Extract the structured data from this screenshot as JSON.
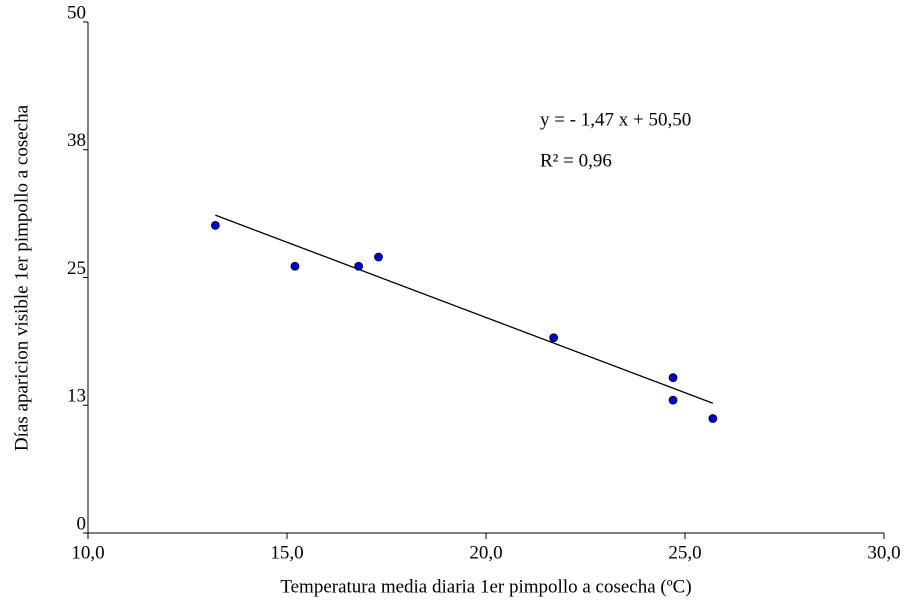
{
  "chart_data": {
    "type": "scatter",
    "x_label": "Temperatura media diaria 1er pimpollo a cosecha (ºC)",
    "y_label": "Días aparicion visible 1er pimpollo a cosecha",
    "annotations": [
      "y = - 1,47 x + 50,50",
      "R² = 0,96"
    ],
    "x": [
      13.2,
      15.2,
      16.8,
      17.3,
      21.7,
      24.7,
      24.7,
      25.7
    ],
    "values": [
      30.1,
      26.1,
      26.1,
      27.0,
      19.1,
      15.2,
      13.0,
      11.2
    ],
    "color": "#0000cc",
    "fit_line": {
      "x": [
        13.2,
        25.7
      ],
      "y": [
        31.1,
        12.7
      ],
      "color": "#000000"
    },
    "xlim": [
      10,
      30
    ],
    "xticks": [
      {
        "value": 10,
        "label": "10,0"
      },
      {
        "value": 15,
        "label": "15,0"
      },
      {
        "value": 20,
        "label": "20,0"
      },
      {
        "value": 25,
        "label": "25,0"
      },
      {
        "value": 30,
        "label": "30,0"
      }
    ],
    "ylim": [
      0,
      50
    ],
    "yticks": [
      0,
      {
        "value": 12.5,
        "label": "13"
      },
      25,
      {
        "value": 37.5,
        "label": "38"
      },
      50
    ],
    "grid": false
  }
}
